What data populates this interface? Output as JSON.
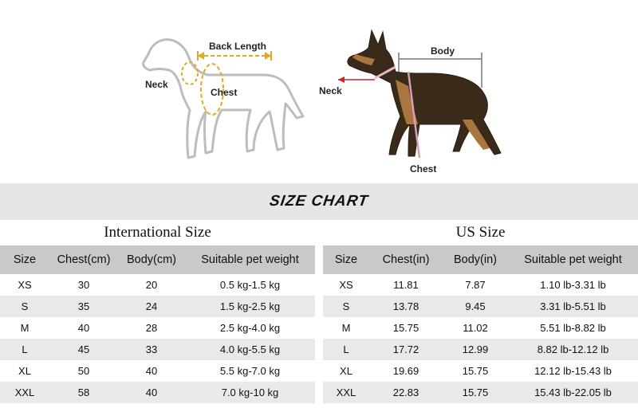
{
  "diagram_left": {
    "labels": {
      "back_length": "Back Length",
      "neck": "Neck",
      "chest": "Chest"
    }
  },
  "diagram_right": {
    "labels": {
      "body": "Body",
      "neck": "Neck",
      "chest": "Chest"
    }
  },
  "banner": {
    "title": "SIZE CHART"
  },
  "international": {
    "title": "International Size",
    "headers": [
      "Size",
      "Chest(cm)",
      "Body(cm)",
      "Suitable pet weight"
    ],
    "rows": [
      [
        "XS",
        "30",
        "20",
        "0.5 kg-1.5 kg"
      ],
      [
        "S",
        "35",
        "24",
        "1.5 kg-2.5 kg"
      ],
      [
        "M",
        "40",
        "28",
        "2.5 kg-4.0 kg"
      ],
      [
        "L",
        "45",
        "33",
        "4.0 kg-5.5 kg"
      ],
      [
        "XL",
        "50",
        "40",
        "5.5 kg-7.0 kg"
      ],
      [
        "XXL",
        "58",
        "40",
        "7.0 kg-10 kg"
      ]
    ]
  },
  "us": {
    "title": "US Size",
    "headers": [
      "Size",
      "Chest(in)",
      "Body(in)",
      "Suitable pet weight"
    ],
    "rows": [
      [
        "XS",
        "11.81",
        "7.87",
        "1.10 lb-3.31 lb"
      ],
      [
        "S",
        "13.78",
        "9.45",
        "3.31 lb-5.51 lb"
      ],
      [
        "M",
        "15.75",
        "11.02",
        "5.51 lb-8.82 lb"
      ],
      [
        "L",
        "17.72",
        "12.99",
        "8.82 lb-12.12 lb"
      ],
      [
        "XL",
        "19.69",
        "15.75",
        "12.12 lb-15.43 lb"
      ],
      [
        "XXL",
        "22.83",
        "15.75",
        "15.43 lb-22.05 lb"
      ]
    ]
  },
  "colors": {
    "header_bg": "#c9c9c9",
    "row_alt_bg": "#e9e9e9",
    "banner_bg": "#e6e6e6",
    "measure_line": "#e0a825"
  }
}
